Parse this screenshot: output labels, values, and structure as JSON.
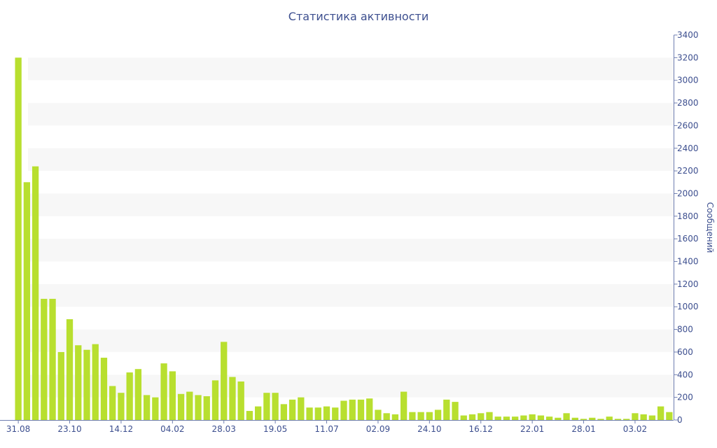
{
  "chart_data": {
    "type": "bar",
    "title": "Статистика активности",
    "ylabel": "Сообщений",
    "xlabel": "",
    "ylim": [
      0,
      3400
    ],
    "y_ticks": [
      0,
      200,
      400,
      600,
      800,
      1000,
      1200,
      1400,
      1600,
      1800,
      2000,
      2200,
      2400,
      2600,
      2800,
      3000,
      3200,
      3400
    ],
    "y_axis_side": "right",
    "grid": "alternating horizontal bands",
    "x_tick_labels": [
      {
        "index": 0,
        "label": "31.08"
      },
      {
        "index": 6,
        "label": "23.10"
      },
      {
        "index": 12,
        "label": "14.12"
      },
      {
        "index": 18,
        "label": "04.02"
      },
      {
        "index": 24,
        "label": "28.03"
      },
      {
        "index": 30,
        "label": "19.05"
      },
      {
        "index": 36,
        "label": "11.07"
      },
      {
        "index": 42,
        "label": "02.09"
      },
      {
        "index": 48,
        "label": "24.10"
      },
      {
        "index": 54,
        "label": "16.12"
      },
      {
        "index": 60,
        "label": "22.01"
      },
      {
        "index": 66,
        "label": "28.01"
      },
      {
        "index": 72,
        "label": "03.02"
      }
    ],
    "values": [
      3200,
      2100,
      2240,
      1070,
      1070,
      600,
      890,
      660,
      620,
      670,
      550,
      300,
      240,
      420,
      450,
      220,
      200,
      500,
      430,
      230,
      250,
      220,
      210,
      350,
      690,
      380,
      340,
      80,
      120,
      240,
      240,
      140,
      180,
      200,
      110,
      110,
      120,
      110,
      170,
      180,
      180,
      190,
      90,
      60,
      50,
      250,
      70,
      70,
      70,
      90,
      180,
      160,
      40,
      50,
      60,
      70,
      30,
      30,
      30,
      40,
      50,
      40,
      30,
      20,
      60,
      20,
      10,
      20,
      10,
      30,
      10,
      10,
      60,
      50,
      40,
      120,
      70
    ],
    "bar_color": "#b8df2f",
    "band_color": "#f7f7f7",
    "text_color": "#3d4f8f",
    "axis_color": "#6e7db0"
  }
}
